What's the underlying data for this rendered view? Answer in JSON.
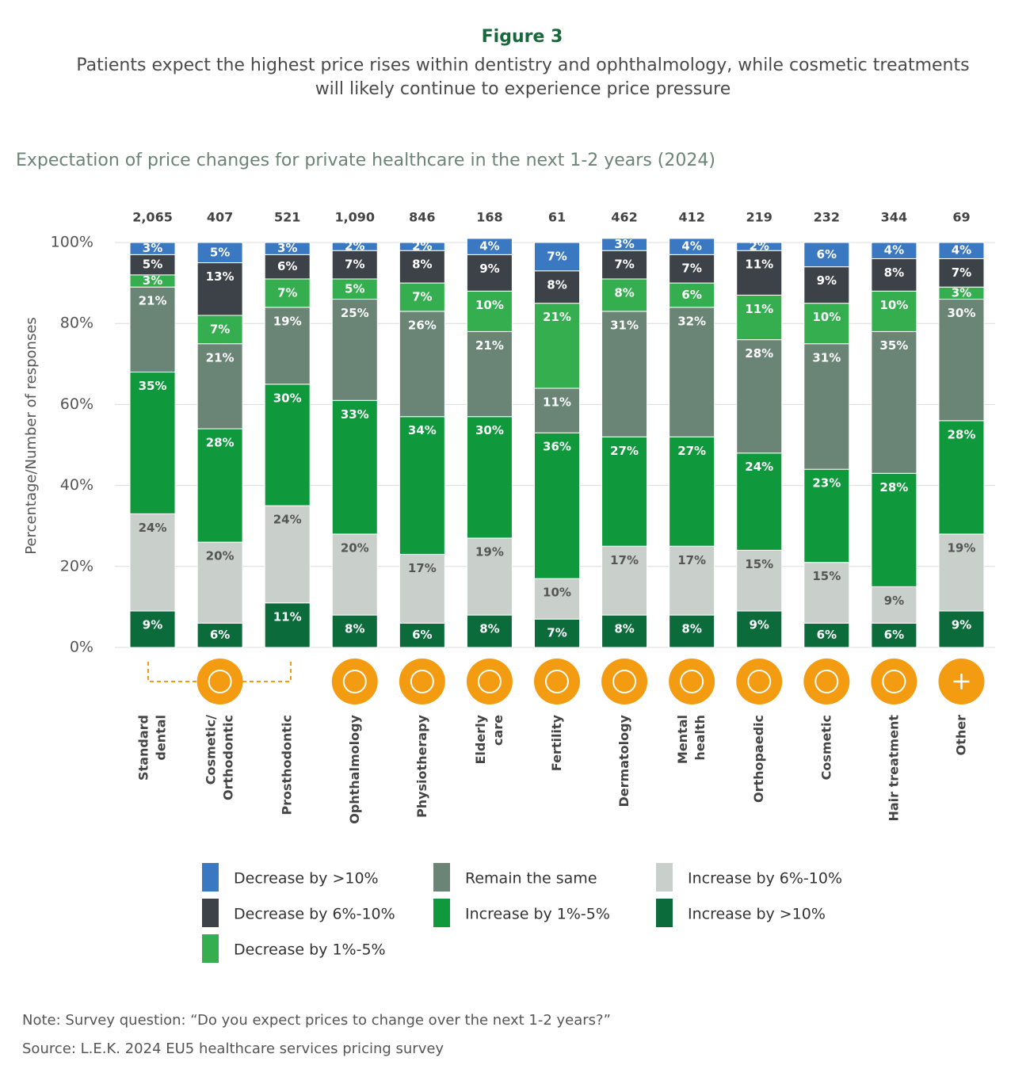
{
  "chart_data": {
    "type": "stacked_bar",
    "figure_label": "Figure 3",
    "title": "Patients expect the highest price rises within dentistry and ophthalmology, while cosmetic treatments will likely continue to experience price pressure",
    "subtitle": "Expectation of price changes for private healthcare in the next 1-2 years (2024)",
    "y_label": "Percentage/Number of responses",
    "categories": [
      "Standard\ndental",
      "Cosmetic/\nOrthodontic",
      "Prosthodontic",
      "Ophthalmology",
      "Physiotherapy",
      "Elderly\ncare",
      "Fertility",
      "Dermatology",
      "Mental\nhealth",
      "Orthopaedic",
      "Cosmetic",
      "Hair treatment",
      "Other"
    ],
    "responses": {
      "values": [
        2065,
        407,
        521,
        1090,
        846,
        168,
        61,
        462,
        412,
        219,
        232,
        344,
        69
      ],
      "value_labels": [
        "2,065",
        "407",
        "521",
        "1,090",
        "846",
        "168",
        "61",
        "462",
        "412",
        "219",
        "232",
        "344",
        "69"
      ]
    },
    "ylim": [
      0,
      100
    ],
    "yticks": [
      {
        "value": 0,
        "label": "0%"
      },
      {
        "value": 20,
        "label": "20%"
      },
      {
        "value": 40,
        "label": "40%"
      },
      {
        "value": 60,
        "label": "60%"
      },
      {
        "value": 80,
        "label": "80%"
      },
      {
        "value": 100,
        "label": "100%"
      }
    ],
    "grid": true,
    "series": [
      {
        "name": "Increase by >10%",
        "color": "#0b6b3a",
        "values": [
          9,
          6,
          11,
          8,
          6,
          8,
          7,
          8,
          8,
          9,
          6,
          6,
          9
        ],
        "value_labels": [
          "9%",
          "6%",
          "11%",
          "8%",
          "6%",
          "8%",
          "7%",
          "8%",
          "8%",
          "9%",
          "6%",
          "6%",
          "9%"
        ]
      },
      {
        "name": "Increase by 6%-10%",
        "color": "#c9d0cc",
        "values": [
          24,
          20,
          24,
          20,
          17,
          19,
          10,
          17,
          17,
          15,
          15,
          9,
          19
        ],
        "value_labels": [
          "24%",
          "20%",
          "24%",
          "20%",
          "17%",
          "19%",
          "10%",
          "17%",
          "17%",
          "15%",
          "15%",
          "9%",
          "19%"
        ]
      },
      {
        "name": "Increase by 1%-5%",
        "color": "#0f983c",
        "values": [
          35,
          28,
          30,
          33,
          34,
          30,
          36,
          27,
          27,
          24,
          23,
          28,
          28
        ],
        "value_labels": [
          "35%",
          "28%",
          "30%",
          "33%",
          "34%",
          "30%",
          "36%",
          "27%",
          "27%",
          "24%",
          "23%",
          "28%",
          "28%"
        ]
      },
      {
        "name": "Remain the same",
        "color": "#6a8475",
        "values": [
          21,
          21,
          19,
          25,
          26,
          21,
          11,
          31,
          32,
          28,
          31,
          35,
          30
        ],
        "value_labels": [
          "21%",
          "21%",
          "19%",
          "25%",
          "26%",
          "21%",
          "11%",
          "31%",
          "32%",
          "28%",
          "31%",
          "35%",
          "30%"
        ]
      },
      {
        "name": "Decrease by 1%-5%",
        "color": "#35ae4f",
        "values": [
          3,
          7,
          7,
          5,
          7,
          10,
          21,
          8,
          6,
          11,
          10,
          10,
          3
        ],
        "value_labels": [
          "3%",
          "7%",
          "7%",
          "5%",
          "7%",
          "10%",
          "21%",
          "8%",
          "6%",
          "11%",
          "10%",
          "10%",
          "3%"
        ]
      },
      {
        "name": "Decrease by 6%-10%",
        "color": "#3d4249",
        "values": [
          5,
          13,
          6,
          7,
          8,
          9,
          8,
          7,
          7,
          11,
          9,
          8,
          7
        ],
        "value_labels": [
          "5%",
          "13%",
          "6%",
          "7%",
          "8%",
          "9%",
          "8%",
          "7%",
          "7%",
          "11%",
          "9%",
          "8%",
          "7%"
        ]
      },
      {
        "name": "Decrease by >10%",
        "color": "#3a78c2",
        "values": [
          3,
          5,
          3,
          2,
          2,
          4,
          7,
          3,
          4,
          2,
          6,
          4,
          4
        ],
        "value_labels": [
          "3%",
          "5%",
          "3%",
          "2%",
          "2%",
          "4%",
          "7%",
          "3%",
          "4%",
          "2%",
          "6%",
          "4%",
          "4%"
        ]
      }
    ],
    "note": "Note: Survey question: “Do you expect prices to change over the next 1-2 years?”",
    "source": "Source: L.E.K. 2024 EU5 healthcare services pricing survey"
  }
}
